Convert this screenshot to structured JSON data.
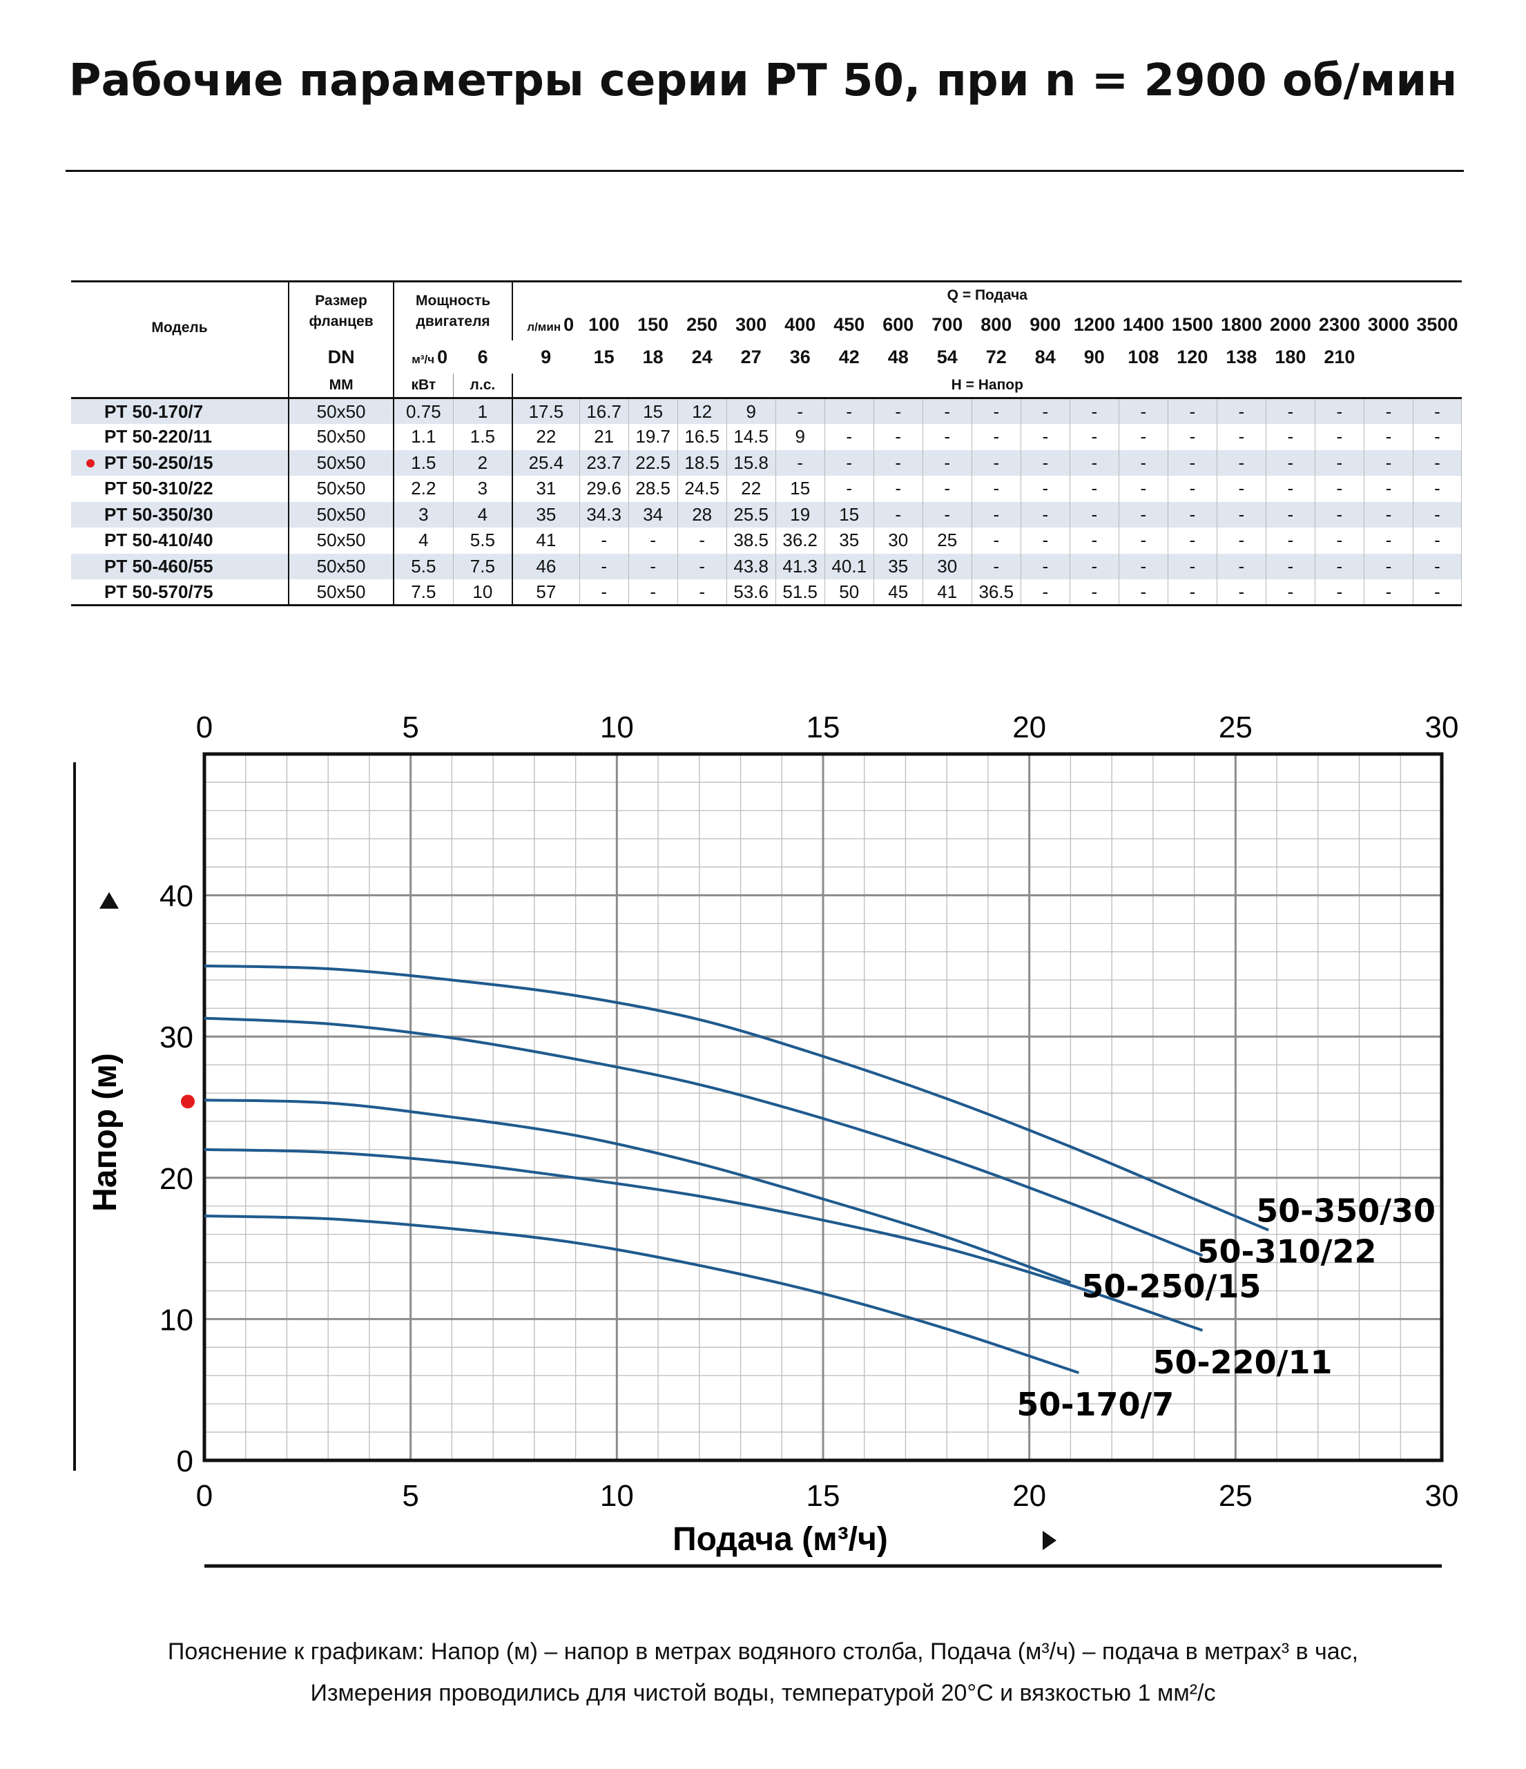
{
  "title": "Рабочие параметры серии PT 50, при n = 2900 об/мин",
  "table": {
    "header": {
      "model": "Модель",
      "flange": "Размер фланцев",
      "dn": "DN",
      "mm": "ММ",
      "power": "Мощность двигателя",
      "kw": "кВт",
      "hp": "л.с.",
      "q_title": "Q = Подача",
      "lmin_unit": "л/мин",
      "m3h_unit": "м³/ч",
      "h_title": "H = Напор",
      "lmin": [
        "0",
        "100",
        "150",
        "250",
        "300",
        "400",
        "450",
        "600",
        "700",
        "800",
        "900",
        "1200",
        "1400",
        "1500",
        "1800",
        "2000",
        "2300",
        "3000",
        "3500"
      ],
      "m3h": [
        "0",
        "6",
        "9",
        "15",
        "18",
        "24",
        "27",
        "36",
        "42",
        "48",
        "54",
        "72",
        "84",
        "90",
        "108",
        "120",
        "138",
        "180",
        "210"
      ]
    },
    "rows": [
      {
        "model": "PT 50-170/7",
        "flange": "50x50",
        "kw": "0.75",
        "hp": "1",
        "marked": false,
        "heads": [
          "17.5",
          "16.7",
          "15",
          "12",
          "9",
          "-",
          "-",
          "-",
          "-",
          "-",
          "-",
          "-",
          "-",
          "-",
          "-",
          "-",
          "-",
          "-",
          "-"
        ]
      },
      {
        "model": "PT 50-220/11",
        "flange": "50x50",
        "kw": "1.1",
        "hp": "1.5",
        "marked": false,
        "heads": [
          "22",
          "21",
          "19.7",
          "16.5",
          "14.5",
          "9",
          "-",
          "-",
          "-",
          "-",
          "-",
          "-",
          "-",
          "-",
          "-",
          "-",
          "-",
          "-",
          "-"
        ]
      },
      {
        "model": "PT 50-250/15",
        "flange": "50x50",
        "kw": "1.5",
        "hp": "2",
        "marked": true,
        "heads": [
          "25.4",
          "23.7",
          "22.5",
          "18.5",
          "15.8",
          "-",
          "-",
          "-",
          "-",
          "-",
          "-",
          "-",
          "-",
          "-",
          "-",
          "-",
          "-",
          "-",
          "-"
        ]
      },
      {
        "model": "PT 50-310/22",
        "flange": "50x50",
        "kw": "2.2",
        "hp": "3",
        "marked": false,
        "heads": [
          "31",
          "29.6",
          "28.5",
          "24.5",
          "22",
          "15",
          "-",
          "-",
          "-",
          "-",
          "-",
          "-",
          "-",
          "-",
          "-",
          "-",
          "-",
          "-",
          "-"
        ]
      },
      {
        "model": "PT 50-350/30",
        "flange": "50x50",
        "kw": "3",
        "hp": "4",
        "marked": false,
        "heads": [
          "35",
          "34.3",
          "34",
          "28",
          "25.5",
          "19",
          "15",
          "-",
          "-",
          "-",
          "-",
          "-",
          "-",
          "-",
          "-",
          "-",
          "-",
          "-",
          "-"
        ]
      },
      {
        "model": "PT 50-410/40",
        "flange": "50x50",
        "kw": "4",
        "hp": "5.5",
        "marked": false,
        "heads": [
          "41",
          "-",
          "-",
          "-",
          "38.5",
          "36.2",
          "35",
          "30",
          "25",
          "-",
          "-",
          "-",
          "-",
          "-",
          "-",
          "-",
          "-",
          "-",
          "-"
        ]
      },
      {
        "model": "PT 50-460/55",
        "flange": "50x50",
        "kw": "5.5",
        "hp": "7.5",
        "marked": false,
        "heads": [
          "46",
          "-",
          "-",
          "-",
          "43.8",
          "41.3",
          "40.1",
          "35",
          "30",
          "-",
          "-",
          "-",
          "-",
          "-",
          "-",
          "-",
          "-",
          "-",
          "-"
        ]
      },
      {
        "model": "PT 50-570/75",
        "flange": "50x50",
        "kw": "7.5",
        "hp": "10",
        "marked": false,
        "heads": [
          "57",
          "-",
          "-",
          "-",
          "53.6",
          "51.5",
          "50",
          "45",
          "41",
          "36.5",
          "-",
          "-",
          "-",
          "-",
          "-",
          "-",
          "-",
          "-",
          "-"
        ]
      }
    ]
  },
  "chart_data": {
    "type": "line",
    "xlabel": "Подача (м³/ч)",
    "ylabel": "Напор (м)",
    "xlim": [
      0,
      30
    ],
    "ylim": [
      0,
      50
    ],
    "x_ticks": [
      "0",
      "5",
      "10",
      "15",
      "20",
      "25",
      "30"
    ],
    "y_ticks": [
      "0",
      "10",
      "20",
      "30",
      "40"
    ],
    "grid": true,
    "marker_y": 25.4,
    "colors": {
      "curve": "#1f5a8e",
      "grid_minor": "#bcbcbc",
      "grid_major": "#8c8c8c",
      "frame": "#111111",
      "marker": "#e31d1d"
    },
    "series": [
      {
        "name": "50-350/30",
        "x": [
          0,
          3,
          6,
          9,
          12,
          15,
          18,
          21,
          24,
          25.8
        ],
        "y": [
          35,
          34.8,
          34,
          32.9,
          31.2,
          28.6,
          25.6,
          22.2,
          18.5,
          16.3
        ]
      },
      {
        "name": "50-310/22",
        "x": [
          0,
          3,
          6,
          9,
          12,
          15,
          18,
          21,
          24.2
        ],
        "y": [
          31.3,
          30.9,
          29.9,
          28.4,
          26.6,
          24.2,
          21.4,
          18.2,
          14.5
        ]
      },
      {
        "name": "50-250/15",
        "x": [
          0,
          3,
          6,
          9,
          12,
          15,
          18,
          21
        ],
        "y": [
          25.5,
          25.3,
          24.3,
          23,
          21,
          18.5,
          15.8,
          12.6
        ]
      },
      {
        "name": "50-220/11",
        "x": [
          0,
          3,
          6,
          9,
          12,
          15,
          18,
          21,
          24.2
        ],
        "y": [
          22,
          21.8,
          21.1,
          20,
          18.7,
          17,
          15,
          12.4,
          9.2
        ]
      },
      {
        "name": "50-170/7",
        "x": [
          0,
          3,
          6,
          9,
          12,
          15,
          18,
          21.2
        ],
        "y": [
          17.3,
          17.1,
          16.4,
          15.4,
          13.8,
          11.8,
          9.3,
          6.2
        ]
      }
    ]
  },
  "footnote": {
    "line1": "Пояснение к графикам: Напор (м) – напор в метрах водяного столба, Подача (м³/ч) – подача в метрах³ в час,",
    "line2": "Измерения проводились для чистой воды, температурой 20°C и вязкостью 1 мм²/с"
  }
}
